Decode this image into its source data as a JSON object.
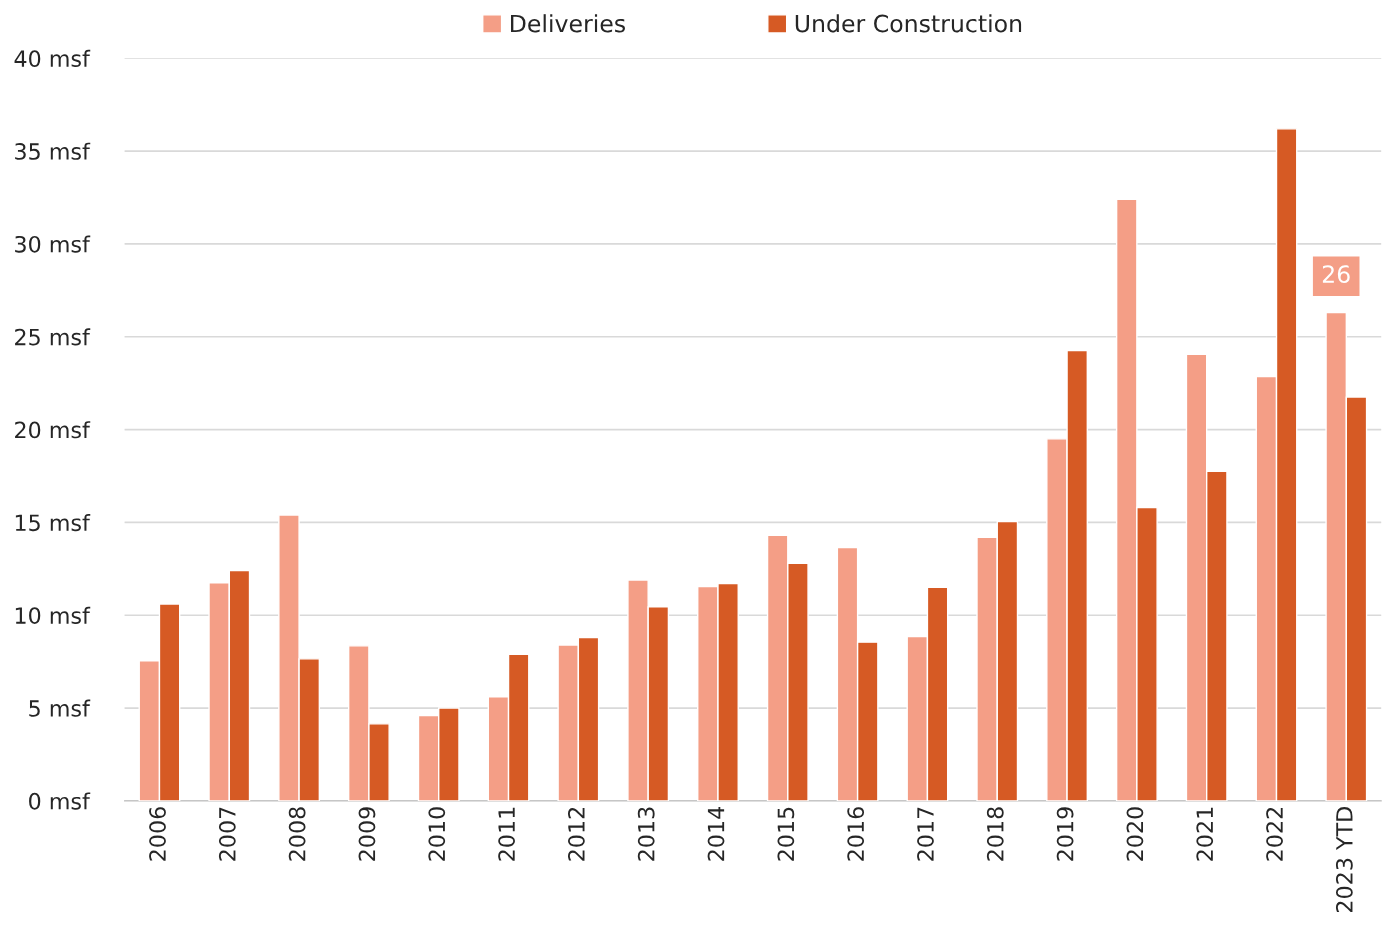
{
  "chart_data": {
    "type": "bar",
    "categories": [
      "2006",
      "2007",
      "2008",
      "2009",
      "2010",
      "2011",
      "2012",
      "2013",
      "2014",
      "2015",
      "2016",
      "2017",
      "2018",
      "2019",
      "2020",
      "2021",
      "2022",
      "2023 YTD"
    ],
    "series": [
      {
        "name": "Deliveries",
        "color": "#f49e86",
        "values": [
          7.55,
          11.75,
          15.4,
          8.35,
          4.6,
          5.6,
          8.4,
          11.9,
          11.55,
          14.3,
          13.65,
          8.85,
          14.2,
          19.5,
          32.4,
          24.05,
          22.85,
          26.3
        ],
        "value_labels": [
          null,
          null,
          null,
          null,
          null,
          null,
          null,
          null,
          null,
          null,
          null,
          null,
          null,
          null,
          null,
          null,
          null,
          "26"
        ]
      },
      {
        "name": "Under Construction",
        "color": "#d65a24",
        "values": [
          10.6,
          12.4,
          7.65,
          4.15,
          5.0,
          7.9,
          8.8,
          10.45,
          11.7,
          12.8,
          8.55,
          11.5,
          15.05,
          24.25,
          15.8,
          17.75,
          36.2,
          21.75
        ]
      }
    ],
    "ylim": [
      0,
      40
    ],
    "yticks": [
      {
        "value": 0,
        "label": "0 msf"
      },
      {
        "value": 5,
        "label": "5 msf"
      },
      {
        "value": 10,
        "label": "10 msf"
      },
      {
        "value": 15,
        "label": "15 msf"
      },
      {
        "value": 20,
        "label": "20 msf"
      },
      {
        "value": 25,
        "label": "25 msf"
      },
      {
        "value": 30,
        "label": "30 msf"
      },
      {
        "value": 35,
        "label": "35 msf"
      },
      {
        "value": 40,
        "label": "40 msf"
      }
    ],
    "grid": "y",
    "legend": "top"
  }
}
